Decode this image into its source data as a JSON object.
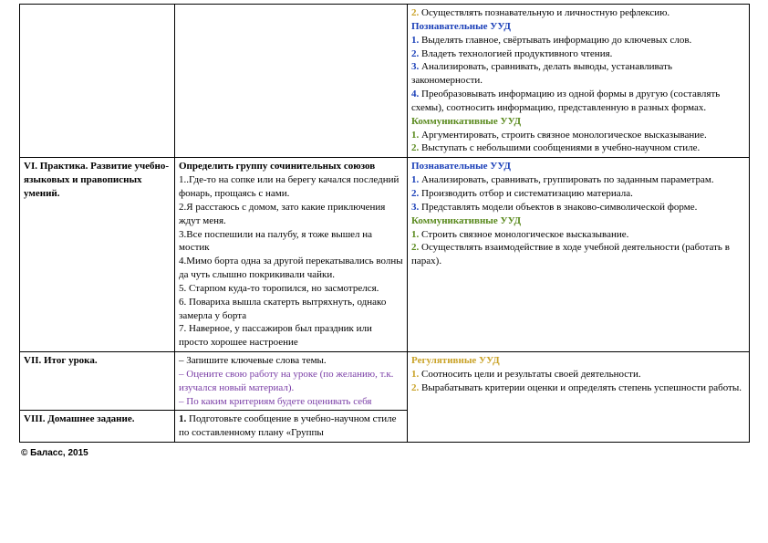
{
  "row1_col3": {
    "l1_num": "2.",
    "l1": "Осуществлять познавательную и личностную рефлексию.",
    "h1": "Познавательные УУД",
    "p1_num": "1.",
    "p1": "Выделять главное, свёртывать информацию до ключевых слов.",
    "p2_num": "2.",
    "p2": "Владеть технологией продуктивного чтения.",
    "p3_num": "3.",
    "p3": "Анализировать, сравнивать, делать выводы, устанавливать закономерности.",
    "p4_num": "4.",
    "p4": "Преобразовывать информацию из одной формы в другую (составлять схемы), соотносить информацию, представленную в разных формах.",
    "h2": "Коммуникативные УУД",
    "k1_num": "1.",
    "k1": "Аргументировать, строить связное монологическое высказывание.",
    "k2_num": "2.",
    "k2": "Выступать с небольшими сообщениями в учебно-научном стиле."
  },
  "row2": {
    "col1": "VI. Практика. Развитие учебно-языковых и правописных умений.",
    "col2_title": "Определить группу сочинительных союзов",
    "col2_items": {
      "i1": "1..Где-то на сопке или на берегу качался последний фонарь, прощаясь с нами.",
      "i2": "2.Я расстаюсь с домом, зато какие приключения ждут меня.",
      "i3": "3.Все поспешили на палубу, я тоже вышел на мостик",
      "i4": "4.Мимо борта одна за другой перекатывались волны  да чуть слышно покрикивали чайки.",
      "i5": "5. Старпом куда-то торопился, но засмотрелся.",
      "i6": "6. Повариха вышла скатерть вытряхнуть, однако замерла у борта",
      "i7": "7. Наверное, у пассажиров был праздник или просто хорошее настроение"
    },
    "col3": {
      "h1": "Познавательные УУД",
      "p1_num": "1.",
      "p1": "Анализировать, сравнивать, группировать по заданным параметрам.",
      "p2_num": "2.",
      "p2": "Производить отбор и систематизацию материала.",
      "p3_num": "3.",
      "p3": "Представлять модели объектов в знаково-символической форме.",
      "h2": "Коммуникативные УУД",
      "k1_num": "1.",
      "k1": "Строить связное монологическое высказывание.",
      "k2_num": "2.",
      "k2": "Осуществлять взаимодействие в ходе учебной деятельности (работать в парах)."
    }
  },
  "row3": {
    "col1": "VII. Итог урока.",
    "col2": {
      "l1": "–      Запишите ключевые слова темы.",
      "l2": "– Оцените свою работу на уроке (по желанию, т.к. изучался новый материал).",
      "l3": "– По каким критериям будете оценивать себя"
    },
    "col3": {
      "h1": "Регулятивные УУД",
      "r1_num": "1.",
      "r1": "Соотносить цели и результаты своей деятельности.",
      "r2_num": "2.",
      "r2": "Вырабатывать критерии оценки и определять степень успешности работы."
    }
  },
  "row4": {
    "col1": "VIII. Домашнее задание.",
    "col2_num": "1.",
    "col2": "Подготовьте сообщение в учебно-научном стиле по составленному плану «Группы"
  },
  "footer": "© Баласс, 2015"
}
